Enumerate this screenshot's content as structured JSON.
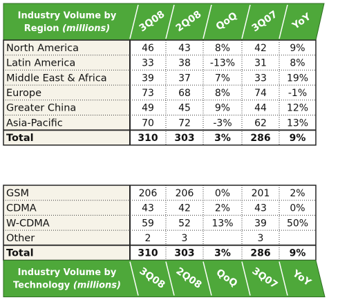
{
  "region_table": {
    "title": "Industry Volume by",
    "subject": "Region",
    "unit": "(millions)",
    "columns": [
      "3Q08",
      "2Q08",
      "QoQ",
      "3Q07",
      "YoY"
    ],
    "rows": [
      {
        "label": "North America",
        "cells": [
          "46",
          "43",
          "8%",
          "42",
          "9%"
        ]
      },
      {
        "label": "Latin America",
        "cells": [
          "33",
          "38",
          "-13%",
          "31",
          "8%"
        ]
      },
      {
        "label": "Middle East & Africa",
        "cells": [
          "39",
          "37",
          "7%",
          "33",
          "19%"
        ]
      },
      {
        "label": "Europe",
        "cells": [
          "73",
          "68",
          "8%",
          "74",
          "-1%"
        ]
      },
      {
        "label": "Greater China",
        "cells": [
          "49",
          "45",
          "9%",
          "44",
          "12%"
        ]
      },
      {
        "label": "Asia-Pacific",
        "cells": [
          "70",
          "72",
          "-3%",
          "62",
          "13%"
        ]
      }
    ],
    "total": {
      "label": "Total",
      "cells": [
        "310",
        "303",
        "3%",
        "286",
        "9%"
      ]
    }
  },
  "technology_table": {
    "title": "Industry Volume by",
    "subject": "Technology",
    "unit": "(millions)",
    "columns": [
      "3Q08",
      "2Q08",
      "QoQ",
      "3Q07",
      "YoY"
    ],
    "rows": [
      {
        "label": "GSM",
        "cells": [
          "206",
          "206",
          "0%",
          "201",
          "2%"
        ]
      },
      {
        "label": "CDMA",
        "cells": [
          "43",
          "42",
          "2%",
          "43",
          "0%"
        ]
      },
      {
        "label": "W-CDMA",
        "cells": [
          "59",
          "52",
          "13%",
          "39",
          "50%"
        ]
      },
      {
        "label": "Other",
        "cells": [
          "2",
          "3",
          null,
          "3",
          null
        ]
      }
    ],
    "total": {
      "label": "Total",
      "cells": [
        "310",
        "303",
        "3%",
        "286",
        "9%"
      ]
    }
  }
}
